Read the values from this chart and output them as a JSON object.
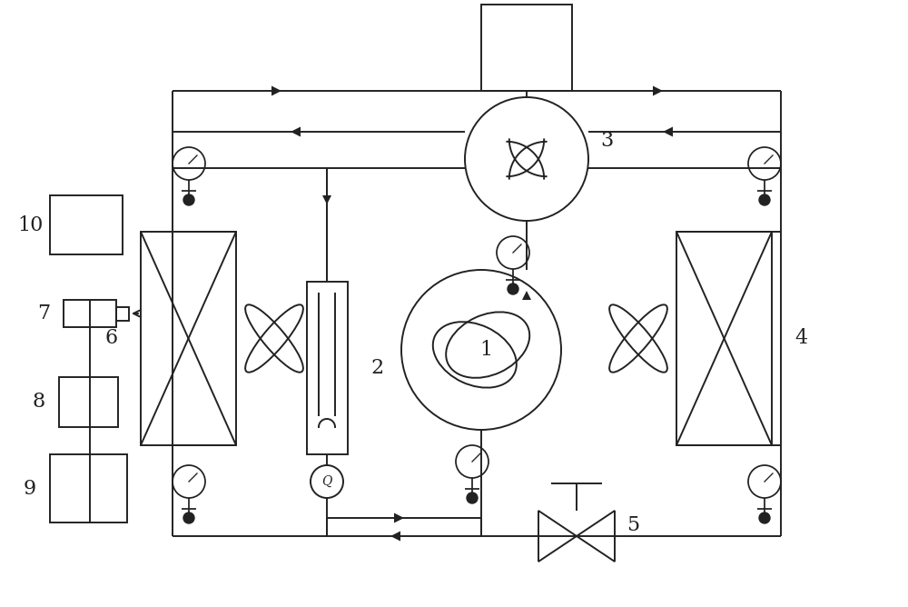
{
  "bg_color": "#ffffff",
  "line_color": "#222222",
  "line_width": 1.4,
  "fig_width": 10.0,
  "fig_height": 6.68,
  "dpi": 100
}
